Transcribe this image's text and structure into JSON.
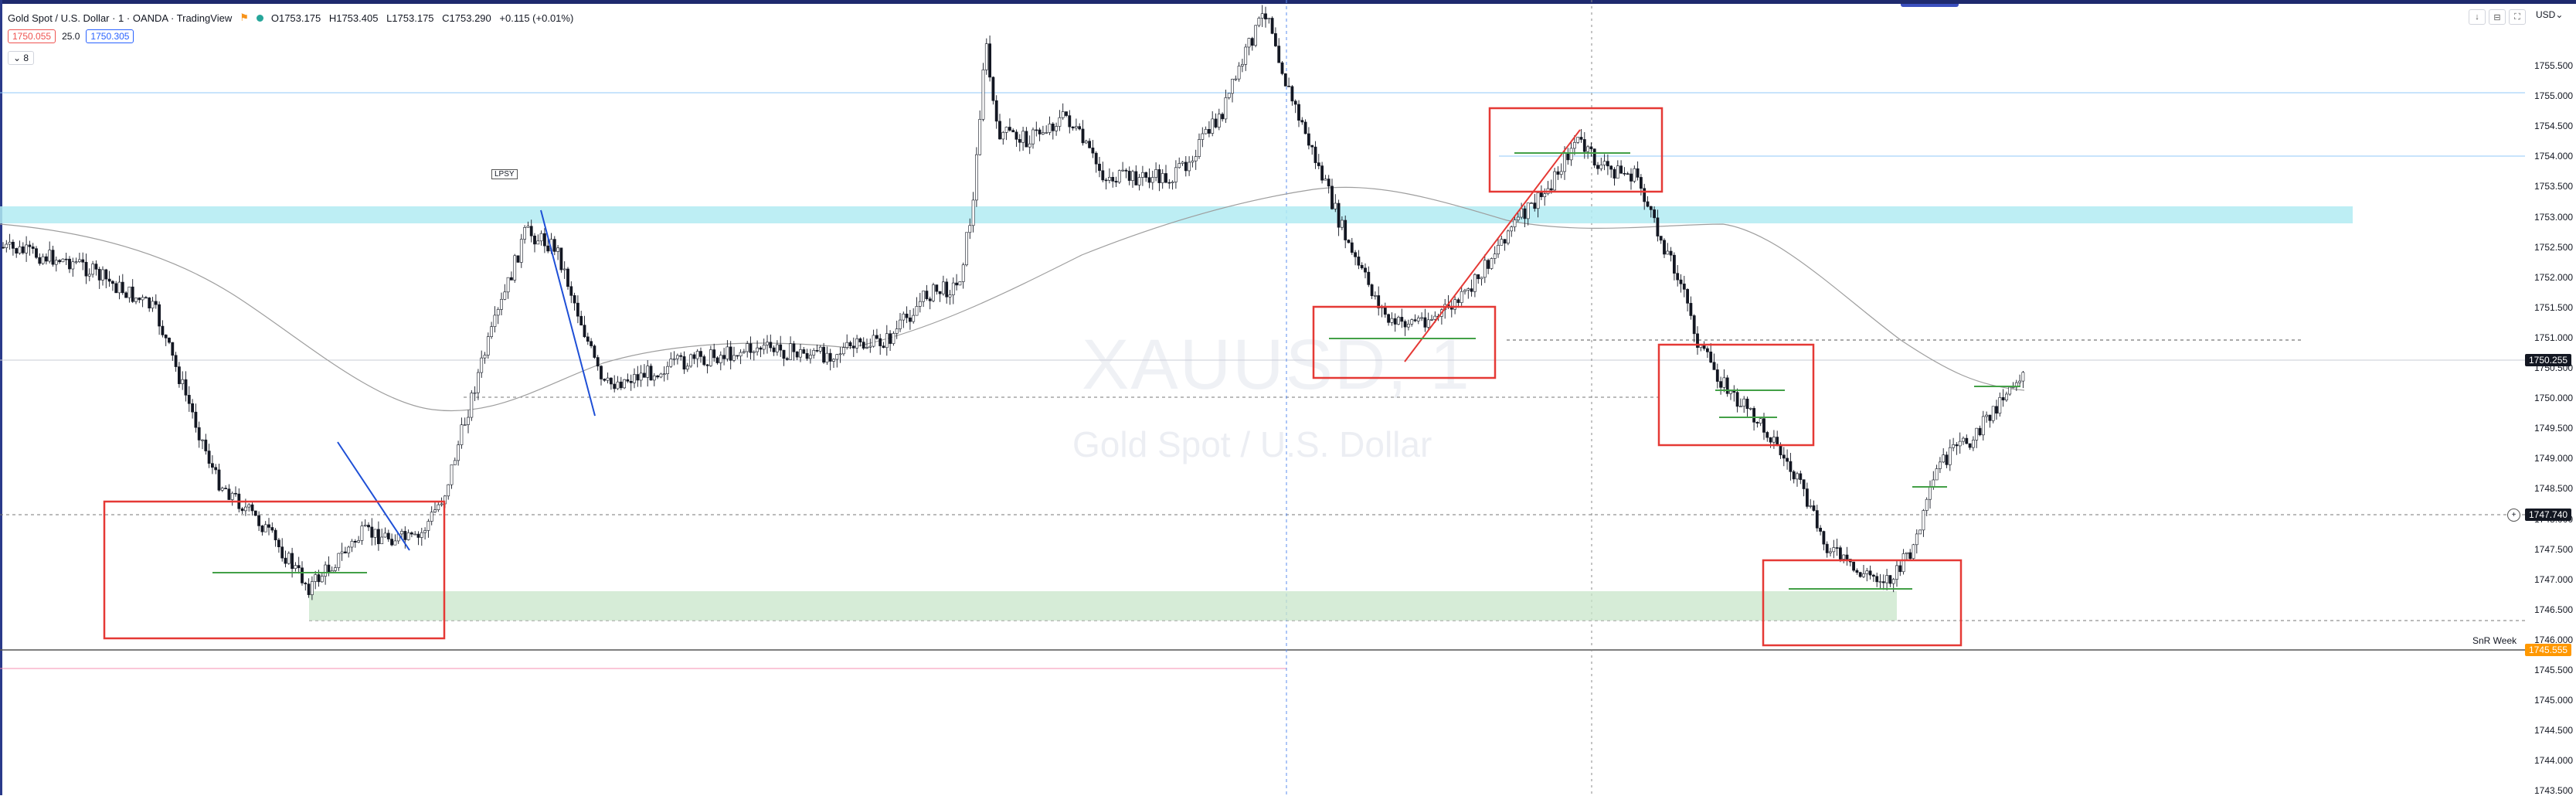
{
  "header": {
    "title": "Gold Spot / U.S. Dollar · 1 · OANDA · TradingView",
    "open": "O1753.175",
    "high": "H1753.405",
    "low": "L1753.175",
    "close": "C1753.290",
    "change": "+0.115 (+0.01%)",
    "status_color": "#26a69a"
  },
  "prices": {
    "bid": "1750.055",
    "spread": "25.0",
    "ask": "1750.305"
  },
  "indicator_toggle": "8",
  "currency": "USD",
  "watermark": {
    "symbol": "XAUUSD, 1",
    "description": "Gold Spot / U.S. Dollar"
  },
  "labels": {
    "lpsy": "LPSY",
    "snr_week": "SnR Week"
  },
  "price_axis": {
    "ticks": [
      "1755.500",
      "1755.000",
      "1754.500",
      "1754.000",
      "1753.500",
      "1753.000",
      "1752.500",
      "1752.000",
      "1751.500",
      "1751.000",
      "1750.500",
      "1750.000",
      "1749.500",
      "1749.000",
      "1748.500",
      "1748.000",
      "1747.500",
      "1747.000",
      "1746.500",
      "1746.000",
      "1745.500",
      "1745.000",
      "1744.500",
      "1744.000",
      "1743.500"
    ],
    "current_price": "1750.255",
    "crosshair_price": "1747.740",
    "snr_price": "1745.555"
  },
  "colors": {
    "up_candle": "#ffffff",
    "down_candle": "#131722",
    "box": "#e53935",
    "zone_blue": "#b2ebf2",
    "zone_green": "#c8e6c9",
    "snr": "#ff9800",
    "trend_red": "#e53935",
    "trend_blue": "#1e4fd6",
    "level_green": "#43a047",
    "ma": "#9e9e9e"
  }
}
